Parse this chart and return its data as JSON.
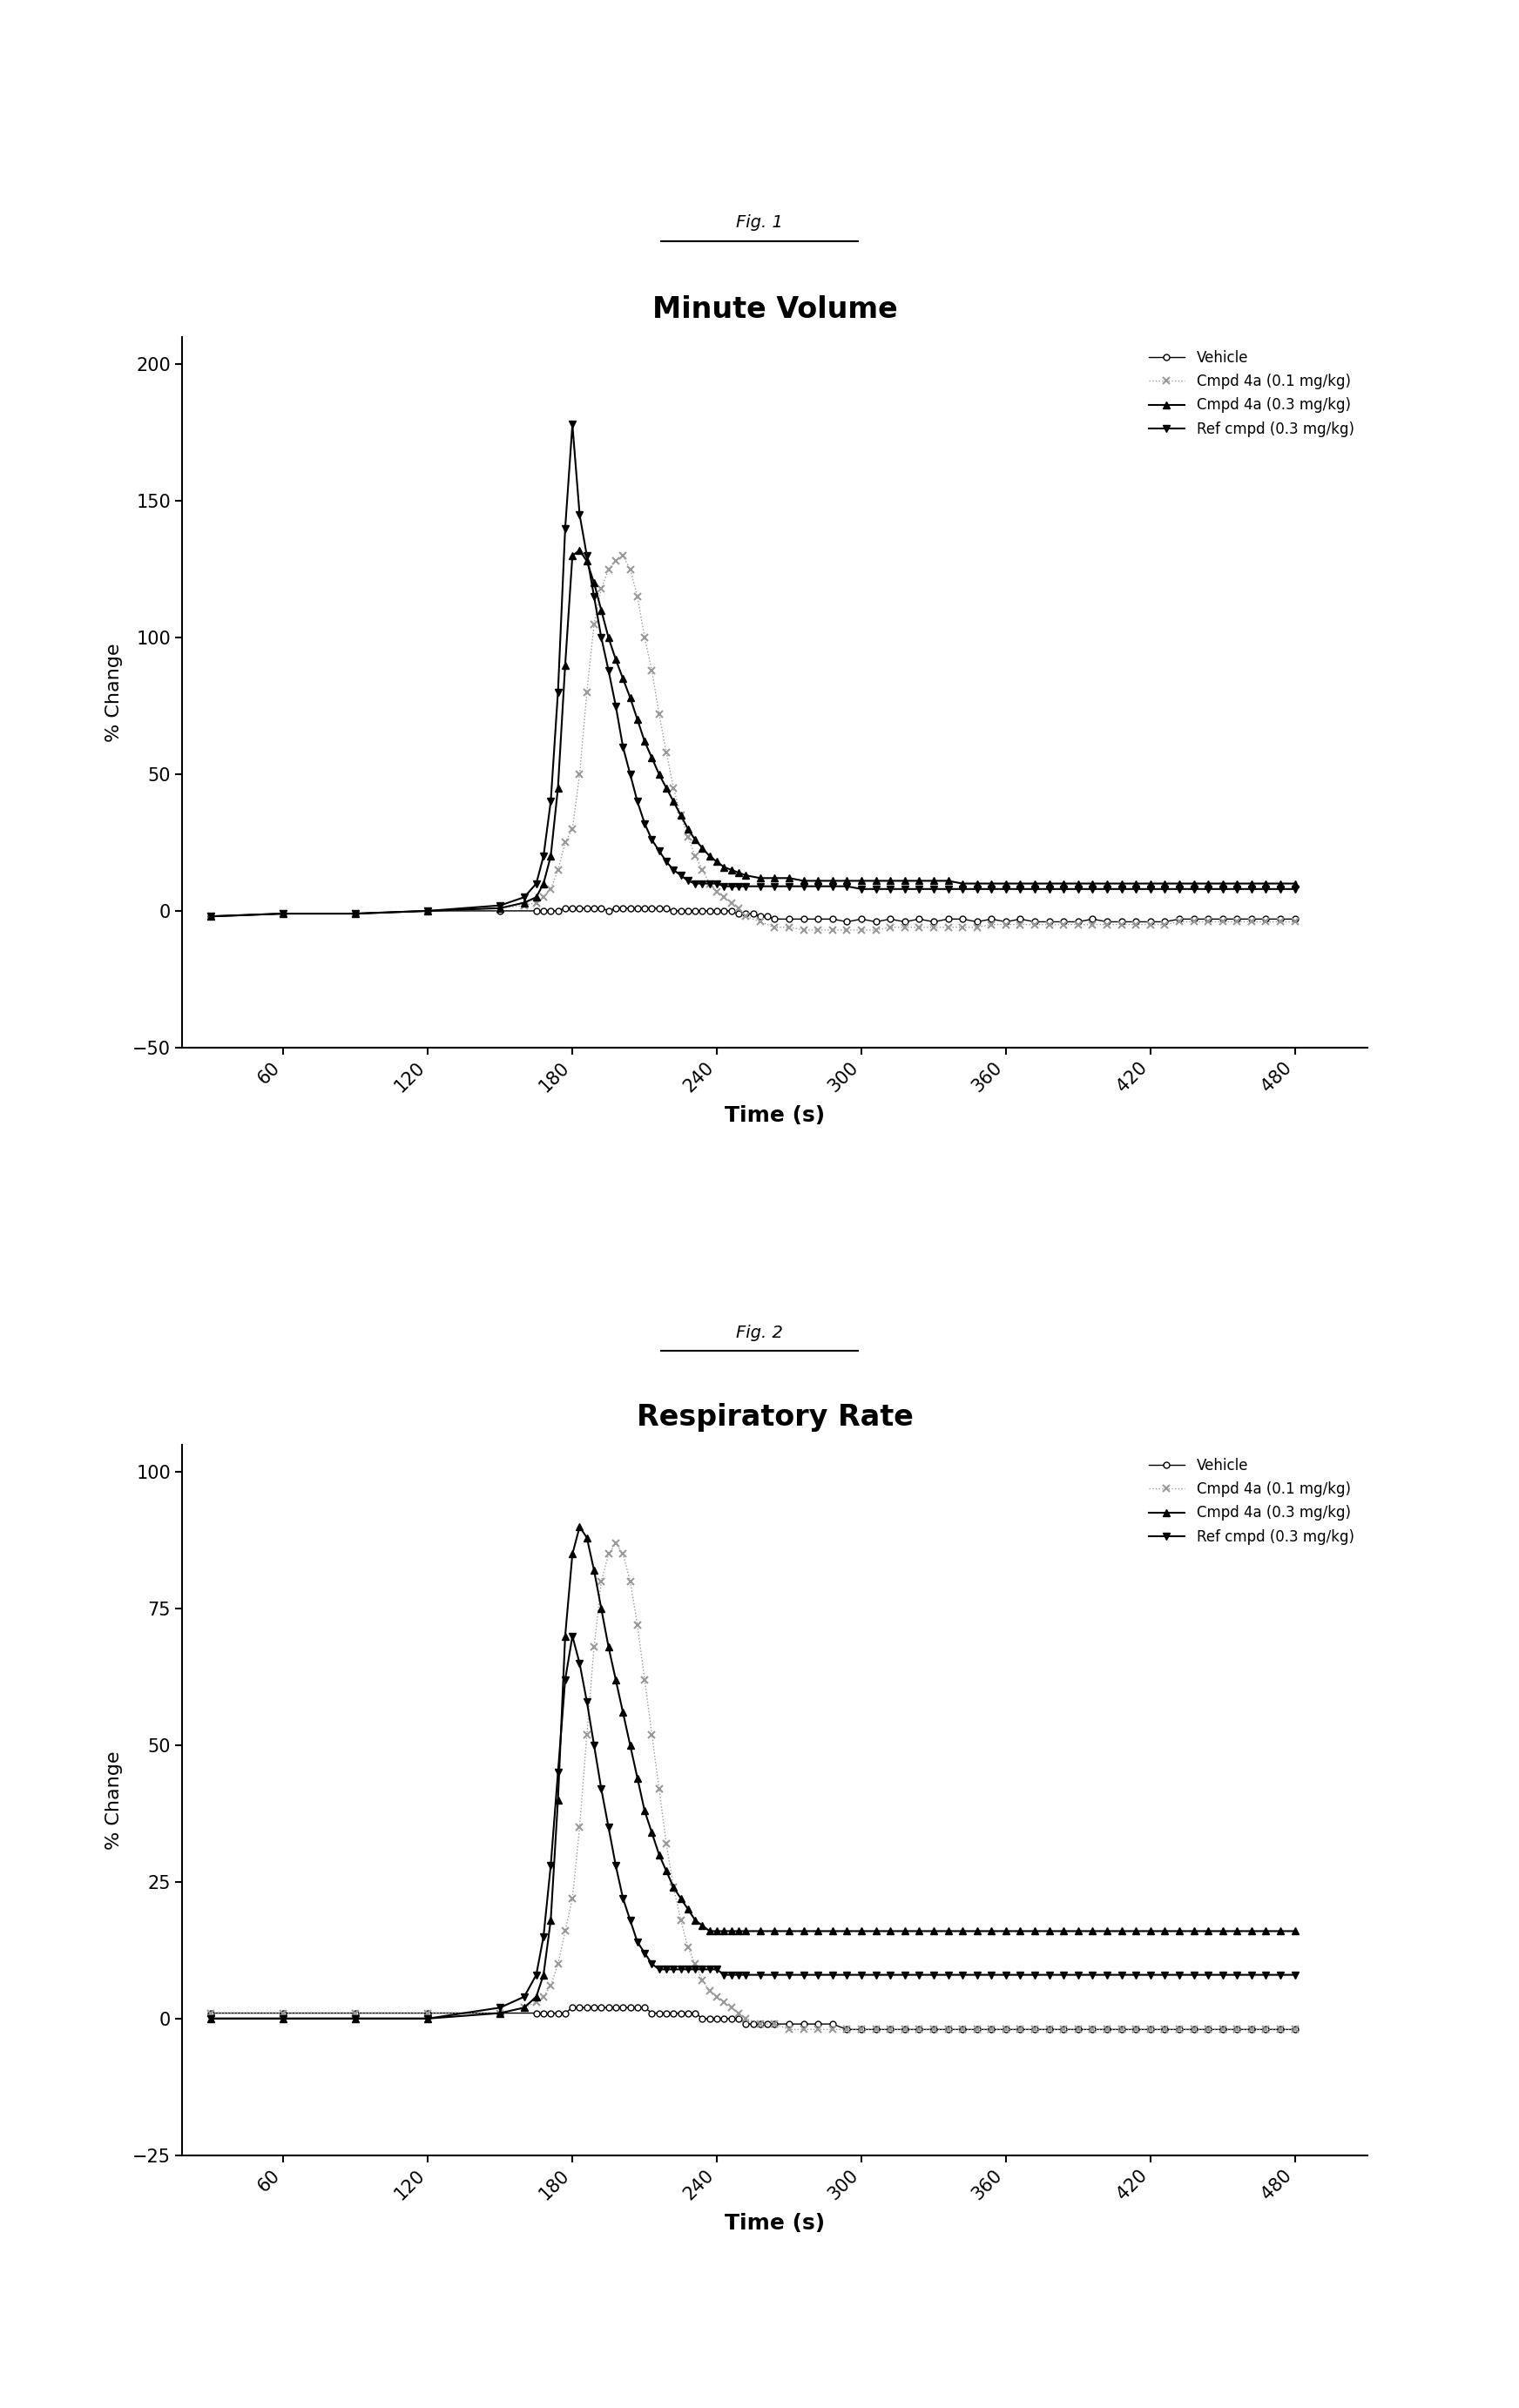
{
  "fig1_title": "Minute Volume",
  "fig2_title": "Respiratory Rate",
  "fig1_label": "Fig. 1",
  "fig2_label": "Fig. 2",
  "xlabel": "Time (s)",
  "ylabel": "% Change",
  "fig1_ylim": [
    -50,
    210
  ],
  "fig2_ylim": [
    -25,
    105
  ],
  "fig1_yticks": [
    -50,
    0,
    50,
    100,
    150,
    200
  ],
  "fig2_yticks": [
    -25,
    0,
    25,
    50,
    75,
    100
  ],
  "xticks": [
    60,
    120,
    180,
    240,
    300,
    360,
    420,
    480
  ],
  "xlim": [
    18,
    510
  ],
  "legend_labels": [
    "Vehicle",
    "Cmpd 4a (0.1 mg/kg)",
    "Cmpd 4a (0.3 mg/kg)",
    "Ref cmpd (0.3 mg/kg)"
  ],
  "fig1_vehicle_x": [
    30,
    60,
    90,
    120,
    150,
    165,
    168,
    171,
    174,
    177,
    180,
    183,
    186,
    189,
    192,
    195,
    198,
    201,
    204,
    207,
    210,
    213,
    216,
    219,
    222,
    225,
    228,
    231,
    234,
    237,
    240,
    243,
    246,
    249,
    252,
    255,
    258,
    261,
    264,
    270,
    276,
    282,
    288,
    294,
    300,
    306,
    312,
    318,
    324,
    330,
    336,
    342,
    348,
    354,
    360,
    366,
    372,
    378,
    384,
    390,
    396,
    402,
    408,
    414,
    420,
    426,
    432,
    438,
    444,
    450,
    456,
    462,
    468,
    474,
    480
  ],
  "fig1_vehicle_y": [
    -2,
    -1,
    -1,
    0,
    0,
    0,
    0,
    0,
    0,
    1,
    1,
    1,
    1,
    1,
    1,
    0,
    1,
    1,
    1,
    1,
    1,
    1,
    1,
    1,
    0,
    0,
    0,
    0,
    0,
    0,
    0,
    0,
    0,
    -1,
    -1,
    -1,
    -2,
    -2,
    -3,
    -3,
    -3,
    -3,
    -3,
    -4,
    -3,
    -4,
    -3,
    -4,
    -3,
    -4,
    -3,
    -3,
    -4,
    -3,
    -4,
    -3,
    -4,
    -4,
    -4,
    -4,
    -3,
    -4,
    -4,
    -4,
    -4,
    -4,
    -3,
    -3,
    -3,
    -3,
    -3,
    -3,
    -3,
    -3,
    -3
  ],
  "fig1_cmpd01_x": [
    30,
    60,
    90,
    120,
    150,
    160,
    165,
    168,
    171,
    174,
    177,
    180,
    183,
    186,
    189,
    192,
    195,
    198,
    201,
    204,
    207,
    210,
    213,
    216,
    219,
    222,
    225,
    228,
    231,
    234,
    237,
    240,
    243,
    246,
    249,
    252,
    258,
    264,
    270,
    276,
    282,
    288,
    294,
    300,
    306,
    312,
    318,
    324,
    330,
    336,
    342,
    348,
    354,
    360,
    366,
    372,
    378,
    384,
    390,
    396,
    402,
    408,
    414,
    420,
    426,
    432,
    438,
    444,
    450,
    456,
    462,
    468,
    474,
    480
  ],
  "fig1_cmpd01_y": [
    -2,
    -1,
    -1,
    0,
    1,
    2,
    3,
    5,
    8,
    15,
    25,
    30,
    50,
    80,
    105,
    118,
    125,
    128,
    130,
    125,
    115,
    100,
    88,
    72,
    58,
    45,
    35,
    27,
    20,
    15,
    10,
    7,
    5,
    3,
    1,
    -2,
    -4,
    -6,
    -6,
    -7,
    -7,
    -7,
    -7,
    -7,
    -7,
    -6,
    -6,
    -6,
    -6,
    -6,
    -6,
    -6,
    -5,
    -5,
    -5,
    -5,
    -5,
    -5,
    -5,
    -5,
    -5,
    -5,
    -5,
    -5,
    -5,
    -4,
    -4,
    -4,
    -4,
    -4,
    -4,
    -4,
    -4,
    -4
  ],
  "fig1_cmpd03_x": [
    30,
    60,
    90,
    120,
    150,
    160,
    165,
    168,
    171,
    174,
    177,
    180,
    183,
    186,
    189,
    192,
    195,
    198,
    201,
    204,
    207,
    210,
    213,
    216,
    219,
    222,
    225,
    228,
    231,
    234,
    237,
    240,
    243,
    246,
    249,
    252,
    258,
    264,
    270,
    276,
    282,
    288,
    294,
    300,
    306,
    312,
    318,
    324,
    330,
    336,
    342,
    348,
    354,
    360,
    366,
    372,
    378,
    384,
    390,
    396,
    402,
    408,
    414,
    420,
    426,
    432,
    438,
    444,
    450,
    456,
    462,
    468,
    474,
    480
  ],
  "fig1_cmpd03_y": [
    -2,
    -1,
    -1,
    0,
    1,
    3,
    5,
    10,
    20,
    45,
    90,
    130,
    132,
    128,
    120,
    110,
    100,
    92,
    85,
    78,
    70,
    62,
    56,
    50,
    45,
    40,
    35,
    30,
    26,
    23,
    20,
    18,
    16,
    15,
    14,
    13,
    12,
    12,
    12,
    11,
    11,
    11,
    11,
    11,
    11,
    11,
    11,
    11,
    11,
    11,
    10,
    10,
    10,
    10,
    10,
    10,
    10,
    10,
    10,
    10,
    10,
    10,
    10,
    10,
    10,
    10,
    10,
    10,
    10,
    10,
    10,
    10,
    10,
    10
  ],
  "fig1_ref_x": [
    30,
    60,
    90,
    120,
    150,
    160,
    165,
    168,
    171,
    174,
    177,
    180,
    183,
    186,
    189,
    192,
    195,
    198,
    201,
    204,
    207,
    210,
    213,
    216,
    219,
    222,
    225,
    228,
    231,
    234,
    237,
    240,
    243,
    246,
    249,
    252,
    258,
    264,
    270,
    276,
    282,
    288,
    294,
    300,
    306,
    312,
    318,
    324,
    330,
    336,
    342,
    348,
    354,
    360,
    366,
    372,
    378,
    384,
    390,
    396,
    402,
    408,
    414,
    420,
    426,
    432,
    438,
    444,
    450,
    456,
    462,
    468,
    474,
    480
  ],
  "fig1_ref_y": [
    -2,
    -1,
    -1,
    0,
    2,
    5,
    10,
    20,
    40,
    80,
    140,
    178,
    145,
    130,
    115,
    100,
    88,
    75,
    60,
    50,
    40,
    32,
    26,
    22,
    18,
    15,
    13,
    11,
    10,
    10,
    10,
    10,
    9,
    9,
    9,
    9,
    9,
    9,
    9,
    9,
    9,
    9,
    9,
    8,
    8,
    8,
    8,
    8,
    8,
    8,
    8,
    8,
    8,
    8,
    8,
    8,
    8,
    8,
    8,
    8,
    8,
    8,
    8,
    8,
    8,
    8,
    8,
    8,
    8,
    8,
    8,
    8,
    8,
    8
  ],
  "fig2_vehicle_x": [
    30,
    60,
    90,
    120,
    150,
    165,
    168,
    171,
    174,
    177,
    180,
    183,
    186,
    189,
    192,
    195,
    198,
    201,
    204,
    207,
    210,
    213,
    216,
    219,
    222,
    225,
    228,
    231,
    234,
    237,
    240,
    243,
    246,
    249,
    252,
    255,
    258,
    261,
    264,
    270,
    276,
    282,
    288,
    294,
    300,
    306,
    312,
    318,
    324,
    330,
    336,
    342,
    348,
    354,
    360,
    366,
    372,
    378,
    384,
    390,
    396,
    402,
    408,
    414,
    420,
    426,
    432,
    438,
    444,
    450,
    456,
    462,
    468,
    474,
    480
  ],
  "fig2_vehicle_y": [
    1,
    1,
    1,
    1,
    1,
    1,
    1,
    1,
    1,
    1,
    2,
    2,
    2,
    2,
    2,
    2,
    2,
    2,
    2,
    2,
    2,
    1,
    1,
    1,
    1,
    1,
    1,
    1,
    0,
    0,
    0,
    0,
    0,
    0,
    -1,
    -1,
    -1,
    -1,
    -1,
    -1,
    -1,
    -1,
    -1,
    -2,
    -2,
    -2,
    -2,
    -2,
    -2,
    -2,
    -2,
    -2,
    -2,
    -2,
    -2,
    -2,
    -2,
    -2,
    -2,
    -2,
    -2,
    -2,
    -2,
    -2,
    -2,
    -2,
    -2,
    -2,
    -2,
    -2,
    -2,
    -2,
    -2,
    -2,
    -2
  ],
  "fig2_cmpd01_x": [
    30,
    60,
    90,
    120,
    150,
    160,
    165,
    168,
    171,
    174,
    177,
    180,
    183,
    186,
    189,
    192,
    195,
    198,
    201,
    204,
    207,
    210,
    213,
    216,
    219,
    222,
    225,
    228,
    231,
    234,
    237,
    240,
    243,
    246,
    249,
    252,
    258,
    264,
    270,
    276,
    282,
    288,
    294,
    300,
    306,
    312,
    318,
    324,
    330,
    336,
    342,
    348,
    354,
    360,
    366,
    372,
    378,
    384,
    390,
    396,
    402,
    408,
    414,
    420,
    426,
    432,
    438,
    444,
    450,
    456,
    462,
    468,
    474,
    480
  ],
  "fig2_cmpd01_y": [
    1,
    1,
    1,
    1,
    1,
    2,
    3,
    4,
    6,
    10,
    16,
    22,
    35,
    52,
    68,
    80,
    85,
    87,
    85,
    80,
    72,
    62,
    52,
    42,
    32,
    24,
    18,
    13,
    10,
    7,
    5,
    4,
    3,
    2,
    1,
    0,
    -1,
    -1,
    -2,
    -2,
    -2,
    -2,
    -2,
    -2,
    -2,
    -2,
    -2,
    -2,
    -2,
    -2,
    -2,
    -2,
    -2,
    -2,
    -2,
    -2,
    -2,
    -2,
    -2,
    -2,
    -2,
    -2,
    -2,
    -2,
    -2,
    -2,
    -2,
    -2,
    -2,
    -2,
    -2,
    -2,
    -2,
    -2
  ],
  "fig2_cmpd03_x": [
    30,
    60,
    90,
    120,
    150,
    160,
    165,
    168,
    171,
    174,
    177,
    180,
    183,
    186,
    189,
    192,
    195,
    198,
    201,
    204,
    207,
    210,
    213,
    216,
    219,
    222,
    225,
    228,
    231,
    234,
    237,
    240,
    243,
    246,
    249,
    252,
    258,
    264,
    270,
    276,
    282,
    288,
    294,
    300,
    306,
    312,
    318,
    324,
    330,
    336,
    342,
    348,
    354,
    360,
    366,
    372,
    378,
    384,
    390,
    396,
    402,
    408,
    414,
    420,
    426,
    432,
    438,
    444,
    450,
    456,
    462,
    468,
    474,
    480
  ],
  "fig2_cmpd03_y": [
    0,
    0,
    0,
    0,
    1,
    2,
    4,
    8,
    18,
    40,
    70,
    85,
    90,
    88,
    82,
    75,
    68,
    62,
    56,
    50,
    44,
    38,
    34,
    30,
    27,
    24,
    22,
    20,
    18,
    17,
    16,
    16,
    16,
    16,
    16,
    16,
    16,
    16,
    16,
    16,
    16,
    16,
    16,
    16,
    16,
    16,
    16,
    16,
    16,
    16,
    16,
    16,
    16,
    16,
    16,
    16,
    16,
    16,
    16,
    16,
    16,
    16,
    16,
    16,
    16,
    16,
    16,
    16,
    16,
    16,
    16,
    16,
    16,
    16
  ],
  "fig2_ref_x": [
    30,
    60,
    90,
    120,
    150,
    160,
    165,
    168,
    171,
    174,
    177,
    180,
    183,
    186,
    189,
    192,
    195,
    198,
    201,
    204,
    207,
    210,
    213,
    216,
    219,
    222,
    225,
    228,
    231,
    234,
    237,
    240,
    243,
    246,
    249,
    252,
    258,
    264,
    270,
    276,
    282,
    288,
    294,
    300,
    306,
    312,
    318,
    324,
    330,
    336,
    342,
    348,
    354,
    360,
    366,
    372,
    378,
    384,
    390,
    396,
    402,
    408,
    414,
    420,
    426,
    432,
    438,
    444,
    450,
    456,
    462,
    468,
    474,
    480
  ],
  "fig2_ref_y": [
    0,
    0,
    0,
    0,
    2,
    4,
    8,
    15,
    28,
    45,
    62,
    70,
    65,
    58,
    50,
    42,
    35,
    28,
    22,
    18,
    14,
    12,
    10,
    9,
    9,
    9,
    9,
    9,
    9,
    9,
    9,
    9,
    8,
    8,
    8,
    8,
    8,
    8,
    8,
    8,
    8,
    8,
    8,
    8,
    8,
    8,
    8,
    8,
    8,
    8,
    8,
    8,
    8,
    8,
    8,
    8,
    8,
    8,
    8,
    8,
    8,
    8,
    8,
    8,
    8,
    8,
    8,
    8,
    8,
    8,
    8,
    8,
    8,
    8
  ]
}
